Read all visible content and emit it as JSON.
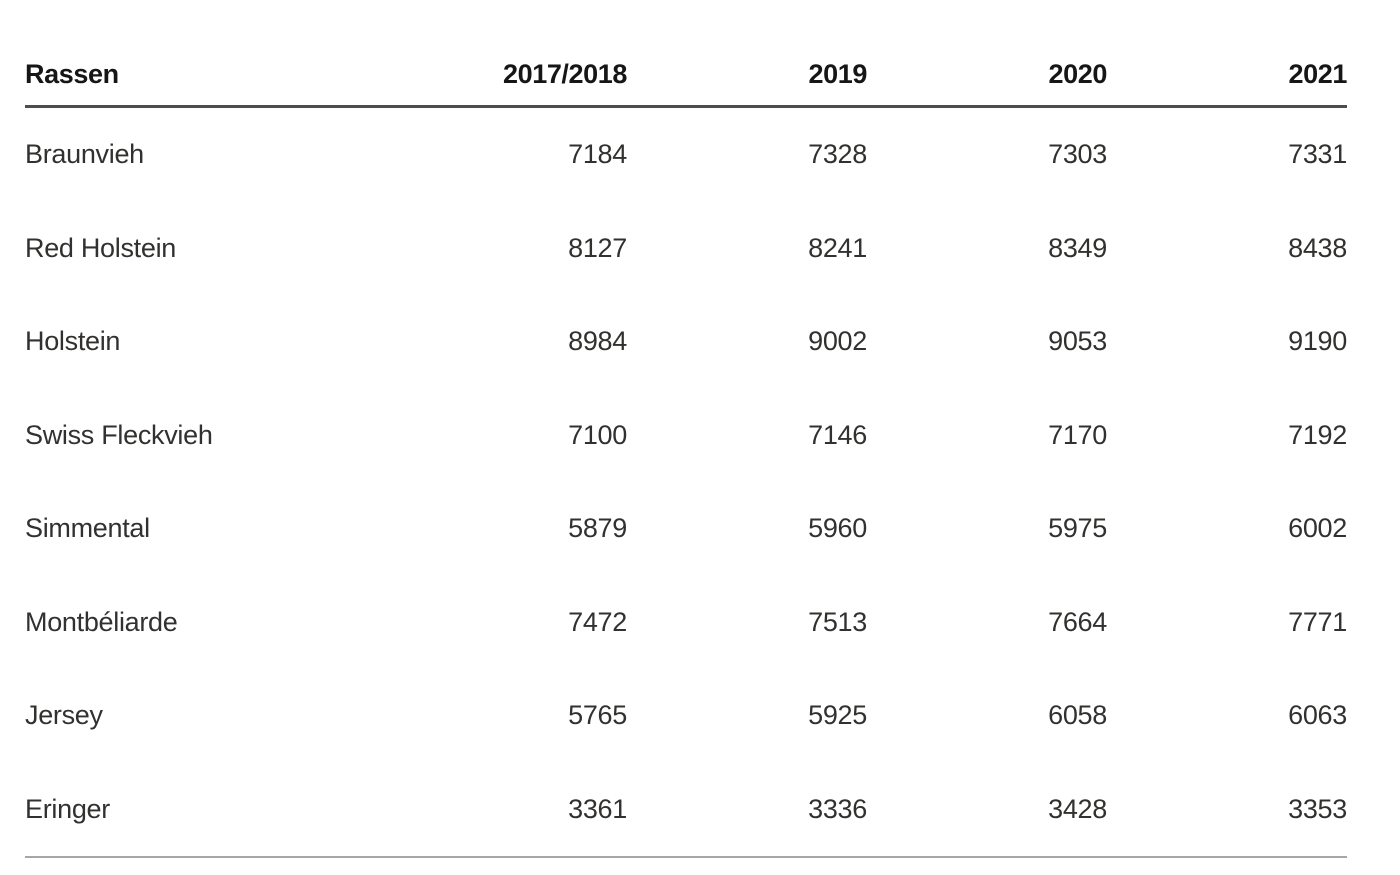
{
  "chart_data": {
    "type": "table",
    "title": "",
    "columns": [
      "Rassen",
      "2017/2018",
      "2019",
      "2020",
      "2021"
    ],
    "rows": [
      {
        "label": "Braunvieh",
        "values": [
          7184,
          7328,
          7303,
          7331
        ]
      },
      {
        "label": "Red Holstein",
        "values": [
          8127,
          8241,
          8349,
          8438
        ]
      },
      {
        "label": "Holstein",
        "values": [
          8984,
          9002,
          9053,
          9190
        ]
      },
      {
        "label": "Swiss Fleckvieh",
        "values": [
          7100,
          7146,
          7170,
          7192
        ]
      },
      {
        "label": "Simmental",
        "values": [
          5879,
          5960,
          5975,
          6002
        ]
      },
      {
        "label": "Montbéliarde",
        "values": [
          7472,
          7513,
          7664,
          7771
        ]
      },
      {
        "label": "Jersey",
        "values": [
          5765,
          5925,
          6058,
          6063
        ]
      },
      {
        "label": "Eringer",
        "values": [
          3361,
          3336,
          3428,
          3353
        ]
      }
    ],
    "layout": {
      "header_bold": true,
      "numeric_columns_right_aligned": true,
      "grid": "horizontal rules only: heavy rule under header, light rule under last row"
    },
    "colors": {
      "background": "#ffffff",
      "header_text": "#161616",
      "body_text": "#32312f",
      "header_rule": "#4d4d4d",
      "bottom_rule": "#a6a6a6"
    }
  }
}
